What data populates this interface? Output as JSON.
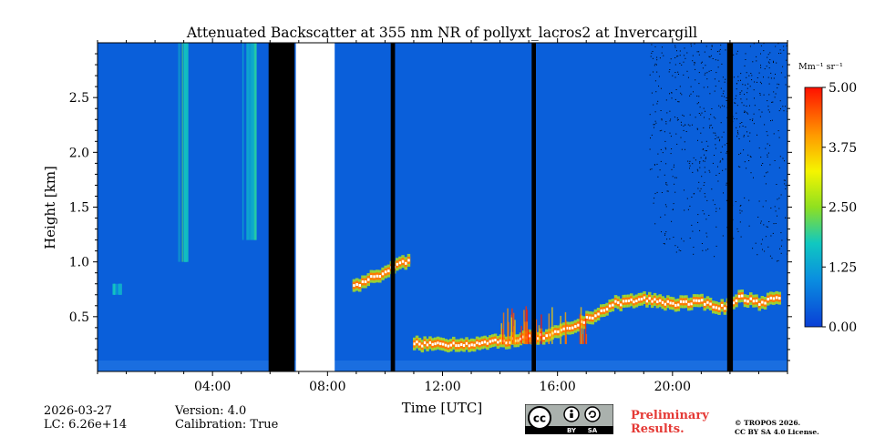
{
  "chart_data": {
    "type": "heatmap",
    "title": "Attenuated Backscatter at 355 nm NR of pollyxt_lacros2 at Invercargill",
    "xlabel": "Time [UTC]",
    "ylabel": "Height [km]",
    "xlim": [
      0,
      24
    ],
    "ylim": [
      0,
      3.0
    ],
    "x_ticks": [
      {
        "v": 4,
        "label": "04:00"
      },
      {
        "v": 8,
        "label": "08:00"
      },
      {
        "v": 12,
        "label": "12:00"
      },
      {
        "v": 16,
        "label": "16:00"
      },
      {
        "v": 20,
        "label": "20:00"
      }
    ],
    "y_ticks": [
      {
        "v": 0.5,
        "label": "0.5"
      },
      {
        "v": 1.0,
        "label": "1.0"
      },
      {
        "v": 1.5,
        "label": "1.5"
      },
      {
        "v": 2.0,
        "label": "2.0"
      },
      {
        "v": 2.5,
        "label": "2.5"
      }
    ],
    "colorbar": {
      "unit": "Mm⁻¹ sr⁻¹",
      "min": 0.0,
      "max": 5.0,
      "ticks": [
        {
          "v": 0.0,
          "label": "0.00"
        },
        {
          "v": 1.25,
          "label": "1.25"
        },
        {
          "v": 2.5,
          "label": "2.50"
        },
        {
          "v": 3.75,
          "label": "3.75"
        },
        {
          "v": 5.0,
          "label": "5.00"
        }
      ]
    },
    "background_value": 0.4,
    "no_data_black": [
      [
        5.95,
        6.85
      ],
      [
        10.2,
        10.35
      ],
      [
        15.1,
        15.25
      ],
      [
        21.9,
        22.1
      ]
    ],
    "no_data_white": [
      [
        6.9,
        8.25
      ]
    ],
    "aerosol_streaks": [
      {
        "t": [
          2.8,
          3.1
        ],
        "h": [
          1.0,
          3.0
        ],
        "value": 2.2
      },
      {
        "t": [
          5.0,
          5.5
        ],
        "h": [
          1.2,
          3.0
        ],
        "value": 2.0
      },
      {
        "t": [
          0.5,
          0.8
        ],
        "h": [
          0.7,
          0.8
        ],
        "value": 1.8
      }
    ],
    "cloud_layer": [
      {
        "t": 8.9,
        "h": 0.78
      },
      {
        "t": 9.5,
        "h": 0.85
      },
      {
        "t": 10.1,
        "h": 0.92
      },
      {
        "t": 10.5,
        "h": 0.98
      },
      {
        "t": 10.9,
        "h": 1.02
      },
      {
        "t": 11.0,
        "h": 0.25
      },
      {
        "t": 12.0,
        "h": 0.25
      },
      {
        "t": 13.0,
        "h": 0.25
      },
      {
        "t": 14.0,
        "h": 0.27
      },
      {
        "t": 14.8,
        "h": 0.3
      },
      {
        "t": 15.6,
        "h": 0.32
      },
      {
        "t": 16.5,
        "h": 0.4
      },
      {
        "t": 17.3,
        "h": 0.52
      },
      {
        "t": 18.0,
        "h": 0.62
      },
      {
        "t": 19.0,
        "h": 0.66
      },
      {
        "t": 20.0,
        "h": 0.62
      },
      {
        "t": 21.0,
        "h": 0.63
      },
      {
        "t": 21.8,
        "h": 0.58
      },
      {
        "t": 22.3,
        "h": 0.68
      },
      {
        "t": 23.0,
        "h": 0.63
      },
      {
        "t": 23.8,
        "h": 0.68
      }
    ],
    "cloud_peak_value": 5.0
  },
  "footer": {
    "date": "2026-03-27",
    "lc": "LC: 6.26e+14",
    "version": "Version: 4.0",
    "calibration": "Calibration: True",
    "preliminary_line1": "Preliminary",
    "preliminary_line2": "Results.",
    "copyright_line1": "© TROPOS 2026.",
    "copyright_line2": "CC BY SA 4.0 License.",
    "license_badge": [
      "BY",
      "SA"
    ]
  }
}
